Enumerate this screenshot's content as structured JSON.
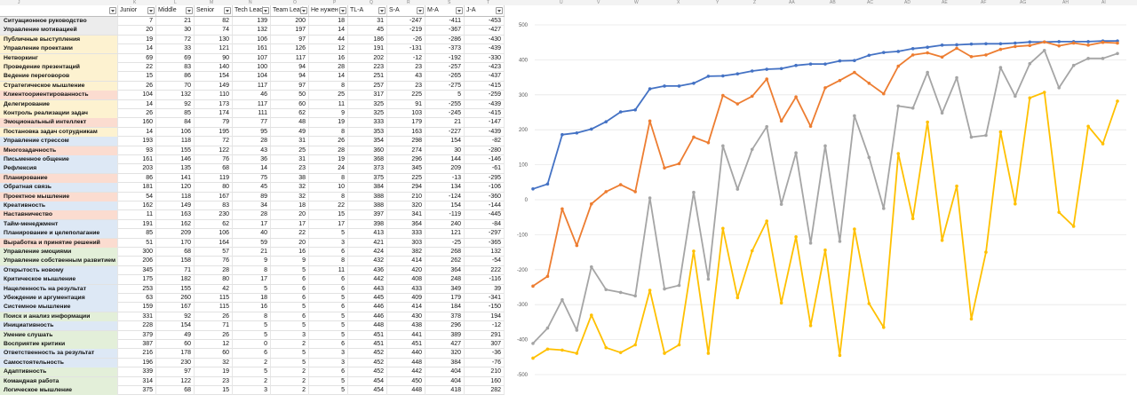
{
  "column_letters": [
    "J",
    "K",
    "L",
    "M",
    "N",
    "O",
    "P",
    "Q",
    "R",
    "S",
    "T",
    "U",
    "V",
    "W",
    "X",
    "Y",
    "Z",
    "AA",
    "AB",
    "AC",
    "AD",
    "AE",
    "AF",
    "AG",
    "AH",
    "AI"
  ],
  "headers": [
    "",
    "Junior",
    "Middle",
    "Senior",
    "Tech Lead",
    "Team Lead",
    "Не нужен",
    "TL-A",
    "S-A",
    "M-A",
    "J-A"
  ],
  "rows": [
    {
      "name": "Ситуационное руководство",
      "bg": "grey",
      "v": [
        7,
        21,
        82,
        139,
        200,
        18,
        31,
        -247,
        -411,
        -453
      ]
    },
    {
      "name": "Управление мотивацией",
      "bg": "grey",
      "v": [
        20,
        30,
        74,
        132,
        197,
        14,
        45,
        -219,
        -367,
        -427
      ]
    },
    {
      "name": "Публичные выступления",
      "bg": "yellow",
      "v": [
        19,
        72,
        130,
        106,
        97,
        44,
        186,
        -26,
        -286,
        -430
      ]
    },
    {
      "name": "Управление проектами",
      "bg": "yellow",
      "v": [
        14,
        33,
        121,
        161,
        126,
        12,
        191,
        -131,
        -373,
        -439
      ]
    },
    {
      "name": "Нетворкинг",
      "bg": "yellow",
      "v": [
        69,
        69,
        90,
        107,
        117,
        16,
        202,
        -12,
        -192,
        -330
      ]
    },
    {
      "name": "Проведение презентаций",
      "bg": "yellow",
      "v": [
        22,
        83,
        140,
        100,
        94,
        28,
        223,
        23,
        -257,
        -423
      ]
    },
    {
      "name": "Ведение переговоров",
      "bg": "yellow",
      "v": [
        15,
        86,
        154,
        104,
        94,
        14,
        251,
        43,
        -265,
        -437
      ]
    },
    {
      "name": "Стратегическое мышление",
      "bg": "yellow",
      "v": [
        26,
        70,
        149,
        117,
        97,
        8,
        257,
        23,
        -275,
        -415
      ]
    },
    {
      "name": "Клиентоориентированность",
      "bg": "red",
      "v": [
        104,
        132,
        110,
        46,
        50,
        25,
        317,
        225,
        5,
        -259
      ]
    },
    {
      "name": "Делегирование",
      "bg": "yellow",
      "v": [
        14,
        92,
        173,
        117,
        60,
        11,
        325,
        91,
        -255,
        -439
      ]
    },
    {
      "name": "Контроль реализации задач",
      "bg": "yellow",
      "v": [
        26,
        85,
        174,
        111,
        62,
        9,
        325,
        103,
        -245,
        -415
      ]
    },
    {
      "name": "Эмоциональный интеллект",
      "bg": "red",
      "v": [
        160,
        84,
        79,
        77,
        48,
        19,
        333,
        179,
        21,
        -147
      ]
    },
    {
      "name": "Постановка задач сотрудникам",
      "bg": "yellow",
      "v": [
        14,
        106,
        195,
        95,
        49,
        8,
        353,
        163,
        -227,
        -439
      ]
    },
    {
      "name": "Управление стрессом",
      "bg": "blue",
      "v": [
        193,
        118,
        72,
        28,
        31,
        26,
        354,
        298,
        154,
        -82
      ]
    },
    {
      "name": "Многозадачность",
      "bg": "red",
      "v": [
        93,
        155,
        122,
        43,
        25,
        28,
        360,
        274,
        30,
        -280
      ]
    },
    {
      "name": "Письменное общение",
      "bg": "blue",
      "v": [
        161,
        146,
        76,
        36,
        31,
        19,
        368,
        296,
        144,
        -146
      ]
    },
    {
      "name": "Рефлексия",
      "bg": "blue",
      "v": [
        203,
        135,
        68,
        14,
        23,
        24,
        373,
        345,
        209,
        -61
      ]
    },
    {
      "name": "Планирование",
      "bg": "red",
      "v": [
        86,
        141,
        119,
        75,
        38,
        8,
        375,
        225,
        -13,
        -295
      ]
    },
    {
      "name": "Обратная связь",
      "bg": "blue",
      "v": [
        181,
        120,
        80,
        45,
        32,
        10,
        384,
        294,
        134,
        -106
      ]
    },
    {
      "name": "Проектное мышление",
      "bg": "red",
      "v": [
        54,
        118,
        167,
        89,
        32,
        8,
        388,
        210,
        -124,
        -360
      ]
    },
    {
      "name": "Креативность",
      "bg": "blue",
      "v": [
        162,
        149,
        83,
        34,
        18,
        22,
        388,
        320,
        154,
        -144
      ]
    },
    {
      "name": "Наставничество",
      "bg": "red",
      "v": [
        11,
        163,
        230,
        28,
        20,
        15,
        397,
        341,
        -119,
        -445
      ]
    },
    {
      "name": "Тайм-менеджмент",
      "bg": "blue",
      "v": [
        191,
        162,
        62,
        17,
        17,
        17,
        398,
        364,
        240,
        -84
      ]
    },
    {
      "name": "Планирование и целеполагание",
      "bg": "blue",
      "v": [
        85,
        209,
        106,
        40,
        22,
        5,
        413,
        333,
        121,
        -297
      ]
    },
    {
      "name": "Выработка и принятие решений",
      "bg": "red",
      "v": [
        51,
        170,
        164,
        59,
        20,
        3,
        421,
        303,
        -25,
        -365
      ]
    },
    {
      "name": "Управление эмоциями",
      "bg": "green",
      "v": [
        300,
        68,
        57,
        21,
        16,
        6,
        424,
        382,
        268,
        132
      ]
    },
    {
      "name": "Управление собственным развитием",
      "bg": "green",
      "v": [
        206,
        158,
        76,
        9,
        9,
        8,
        432,
        414,
        262,
        -54
      ]
    },
    {
      "name": "Открытость новому",
      "bg": "blue",
      "v": [
        345,
        71,
        28,
        8,
        5,
        11,
        436,
        420,
        364,
        222
      ]
    },
    {
      "name": "Критическое мышление",
      "bg": "blue",
      "v": [
        175,
        182,
        80,
        17,
        6,
        6,
        442,
        408,
        248,
        -116
      ]
    },
    {
      "name": "Нацеленность на результат",
      "bg": "blue",
      "v": [
        253,
        155,
        42,
        5,
        6,
        6,
        443,
        433,
        349,
        39
      ]
    },
    {
      "name": "Убеждение и аргументация",
      "bg": "blue",
      "v": [
        63,
        260,
        115,
        18,
        6,
        5,
        445,
        409,
        179,
        -341
      ]
    },
    {
      "name": "Системное мышление",
      "bg": "blue",
      "v": [
        159,
        167,
        115,
        16,
        5,
        6,
        446,
        414,
        184,
        -150
      ]
    },
    {
      "name": "Поиск и анализ информации",
      "bg": "green",
      "v": [
        331,
        92,
        26,
        8,
        6,
        5,
        446,
        430,
        378,
        194
      ]
    },
    {
      "name": "Инициативность",
      "bg": "blue",
      "v": [
        228,
        154,
        71,
        5,
        5,
        5,
        448,
        438,
        296,
        -12
      ]
    },
    {
      "name": "Умение слушать",
      "bg": "green",
      "v": [
        379,
        49,
        26,
        5,
        3,
        5,
        451,
        441,
        389,
        291
      ]
    },
    {
      "name": "Восприятие критики",
      "bg": "green",
      "v": [
        387,
        60,
        12,
        0,
        2,
        6,
        451,
        451,
        427,
        307
      ]
    },
    {
      "name": "Ответственность за результат",
      "bg": "blue",
      "v": [
        216,
        178,
        60,
        6,
        5,
        3,
        452,
        440,
        320,
        -36
      ]
    },
    {
      "name": "Самостоятельность",
      "bg": "blue",
      "v": [
        196,
        230,
        32,
        2,
        5,
        3,
        452,
        448,
        384,
        -76
      ]
    },
    {
      "name": "Адаптивность",
      "bg": "green",
      "v": [
        339,
        97,
        19,
        5,
        2,
        6,
        452,
        442,
        404,
        210
      ]
    },
    {
      "name": "Командная работа",
      "bg": "green",
      "v": [
        314,
        122,
        23,
        2,
        2,
        5,
        454,
        450,
        404,
        160
      ]
    },
    {
      "name": "Логическое мышление",
      "bg": "green",
      "v": [
        375,
        68,
        15,
        3,
        2,
        5,
        454,
        448,
        418,
        282
      ]
    }
  ],
  "colors": {
    "grey": "#ececec",
    "yellow": "#fdf2d0",
    "red": "#fbdcd0",
    "blue": "#dde8f5",
    "green": "#e3efd9"
  },
  "chart_data": {
    "type": "line",
    "ylim": [
      -500,
      500
    ],
    "yticks": [
      500,
      400,
      300,
      200,
      100,
      0,
      -100,
      -200,
      -300,
      -400,
      -500
    ],
    "grid": true,
    "legend": "none",
    "series": [
      {
        "color": "#4472c4",
        "values": [
          31,
          45,
          186,
          191,
          202,
          223,
          251,
          257,
          317,
          325,
          325,
          333,
          353,
          354,
          360,
          368,
          373,
          375,
          384,
          388,
          388,
          397,
          398,
          413,
          421,
          424,
          432,
          436,
          442,
          443,
          445,
          446,
          446,
          448,
          451,
          451,
          452,
          452,
          452,
          454,
          454
        ]
      },
      {
        "color": "#ed7d31",
        "values": [
          -247,
          -219,
          -26,
          -131,
          -12,
          23,
          43,
          23,
          225,
          91,
          103,
          179,
          163,
          298,
          274,
          296,
          345,
          225,
          294,
          210,
          320,
          341,
          364,
          333,
          303,
          382,
          414,
          420,
          408,
          433,
          409,
          414,
          430,
          438,
          441,
          451,
          440,
          448,
          442,
          450,
          448
        ]
      },
      {
        "color": "#a5a5a5",
        "values": [
          -411,
          -367,
          -286,
          -373,
          -192,
          -257,
          -265,
          -275,
          5,
          -255,
          -245,
          21,
          -227,
          154,
          30,
          144,
          209,
          -13,
          134,
          -124,
          154,
          -119,
          240,
          121,
          -25,
          268,
          262,
          364,
          248,
          349,
          179,
          184,
          378,
          296,
          389,
          427,
          320,
          384,
          404,
          404,
          418
        ]
      },
      {
        "color": "#ffc000",
        "values": [
          -453,
          -427,
          -430,
          -439,
          -330,
          -423,
          -437,
          -415,
          -259,
          -439,
          -415,
          -147,
          -439,
          -82,
          -280,
          -146,
          -61,
          -295,
          -106,
          -360,
          -144,
          -445,
          -84,
          -297,
          -365,
          132,
          -54,
          222,
          -116,
          39,
          -341,
          -150,
          194,
          -12,
          291,
          307,
          -36,
          -76,
          210,
          160,
          282
        ]
      }
    ]
  }
}
